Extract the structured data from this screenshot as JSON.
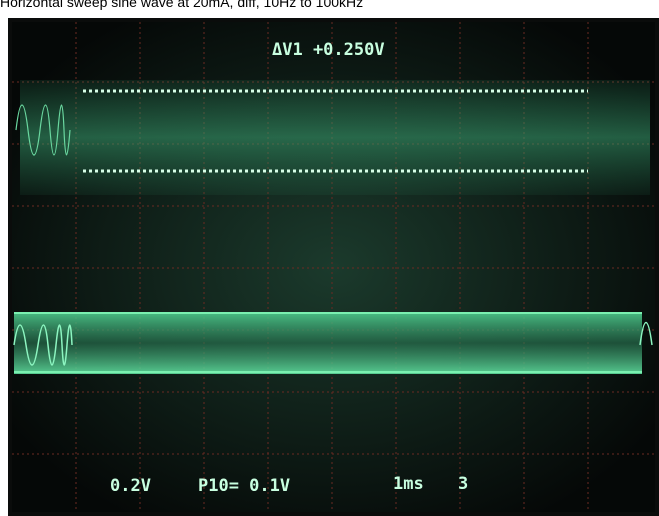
{
  "caption": "Horizontal sweep sine wave at 20mA, diff, 10Hz to 100kHz",
  "readout": {
    "cursor": "ΔV1 +0.250V",
    "ch_scale": "0.2V",
    "probe": "P10= 0.1V",
    "timebase": "1ms",
    "mode": "3"
  }
}
